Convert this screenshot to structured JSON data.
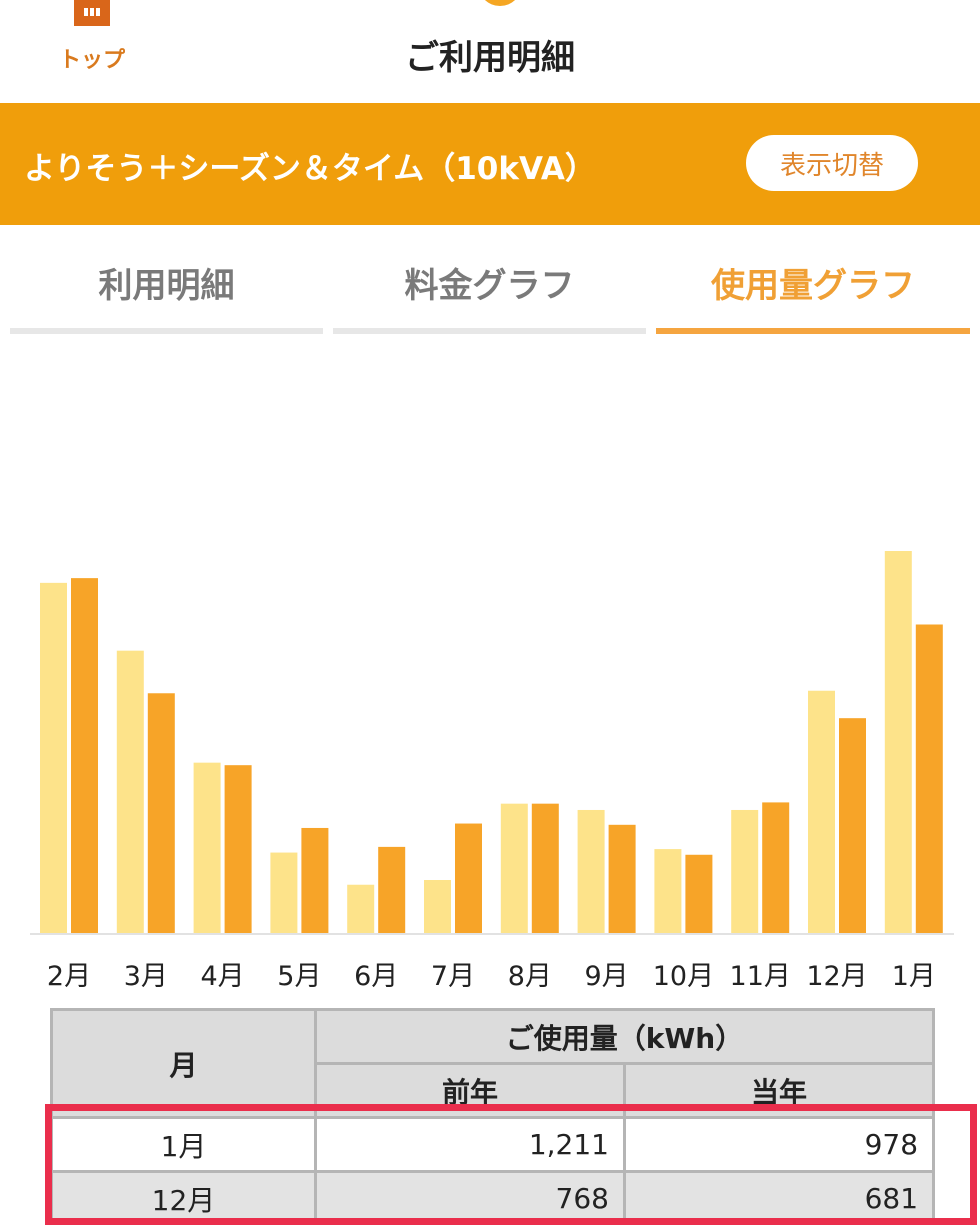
{
  "header": {
    "home_label": "トップ",
    "page_title": "ご利用明細"
  },
  "banner": {
    "plan_name": "よりそう＋シーズン＆タイム（10kVA）",
    "switch_label": "表示切替"
  },
  "tabs": [
    {
      "label": "利用明細",
      "active": false
    },
    {
      "label": "料金グラフ",
      "active": false
    },
    {
      "label": "使用量グラフ",
      "active": true
    }
  ],
  "colors": {
    "accent": "#f09e0b",
    "prev_year_bar": "#fde38a",
    "current_year_bar": "#f7a428",
    "highlight_border": "#ea2e4c"
  },
  "chart_data": {
    "type": "bar",
    "categories": [
      "2月",
      "3月",
      "4月",
      "5月",
      "6月",
      "7月",
      "8月",
      "9月",
      "10月",
      "11月",
      "12月",
      "1月"
    ],
    "series": [
      {
        "values": [
          1110,
          895,
          540,
          255,
          153,
          168,
          410,
          390,
          266,
          390,
          768,
          1211
        ]
      },
      {
        "values": [
          1125,
          760,
          532,
          333,
          273,
          347,
          410,
          343,
          248,
          414,
          681,
          978
        ]
      }
    ],
    "ylim": [
      0,
      1211
    ],
    "grid": false,
    "legend": "none"
  },
  "table": {
    "headers": {
      "month": "月",
      "usage": "ご使用量（kWh）",
      "prev": "前年",
      "current": "当年"
    },
    "rows": [
      {
        "month": "1月",
        "prev": "1,211",
        "current": "978"
      },
      {
        "month": "12月",
        "prev": "768",
        "current": "681"
      }
    ]
  }
}
